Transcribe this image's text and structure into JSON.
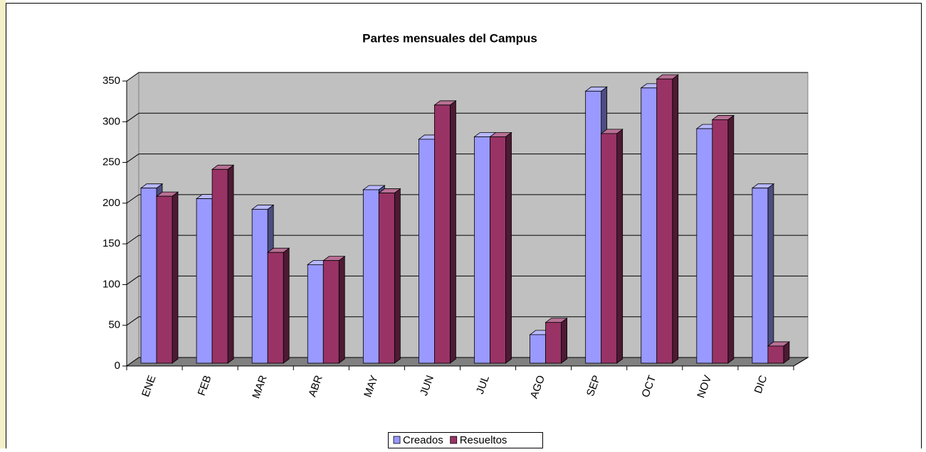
{
  "chart_data": {
    "type": "bar3d",
    "title": "Partes mensuales del Campus",
    "categories": [
      "ENE",
      "FEB",
      "MAR",
      "ABR",
      "MAY",
      "JUN",
      "JUL",
      "AGO",
      "SEP",
      "OCT",
      "NOV",
      "DIC"
    ],
    "series": [
      {
        "name": "Creados",
        "color": "#9999ff",
        "values": [
          215,
          202,
          189,
          121,
          213,
          275,
          278,
          35,
          334,
          338,
          288,
          215
        ]
      },
      {
        "name": "Resueltos",
        "color": "#993366",
        "values": [
          205,
          238,
          136,
          126,
          209,
          317,
          278,
          50,
          282,
          349,
          299,
          21
        ]
      }
    ],
    "ylim": [
      0,
      350
    ],
    "yticks": [
      0,
      50,
      100,
      150,
      200,
      250,
      300,
      350
    ],
    "grid": true,
    "legend": "bottom"
  }
}
